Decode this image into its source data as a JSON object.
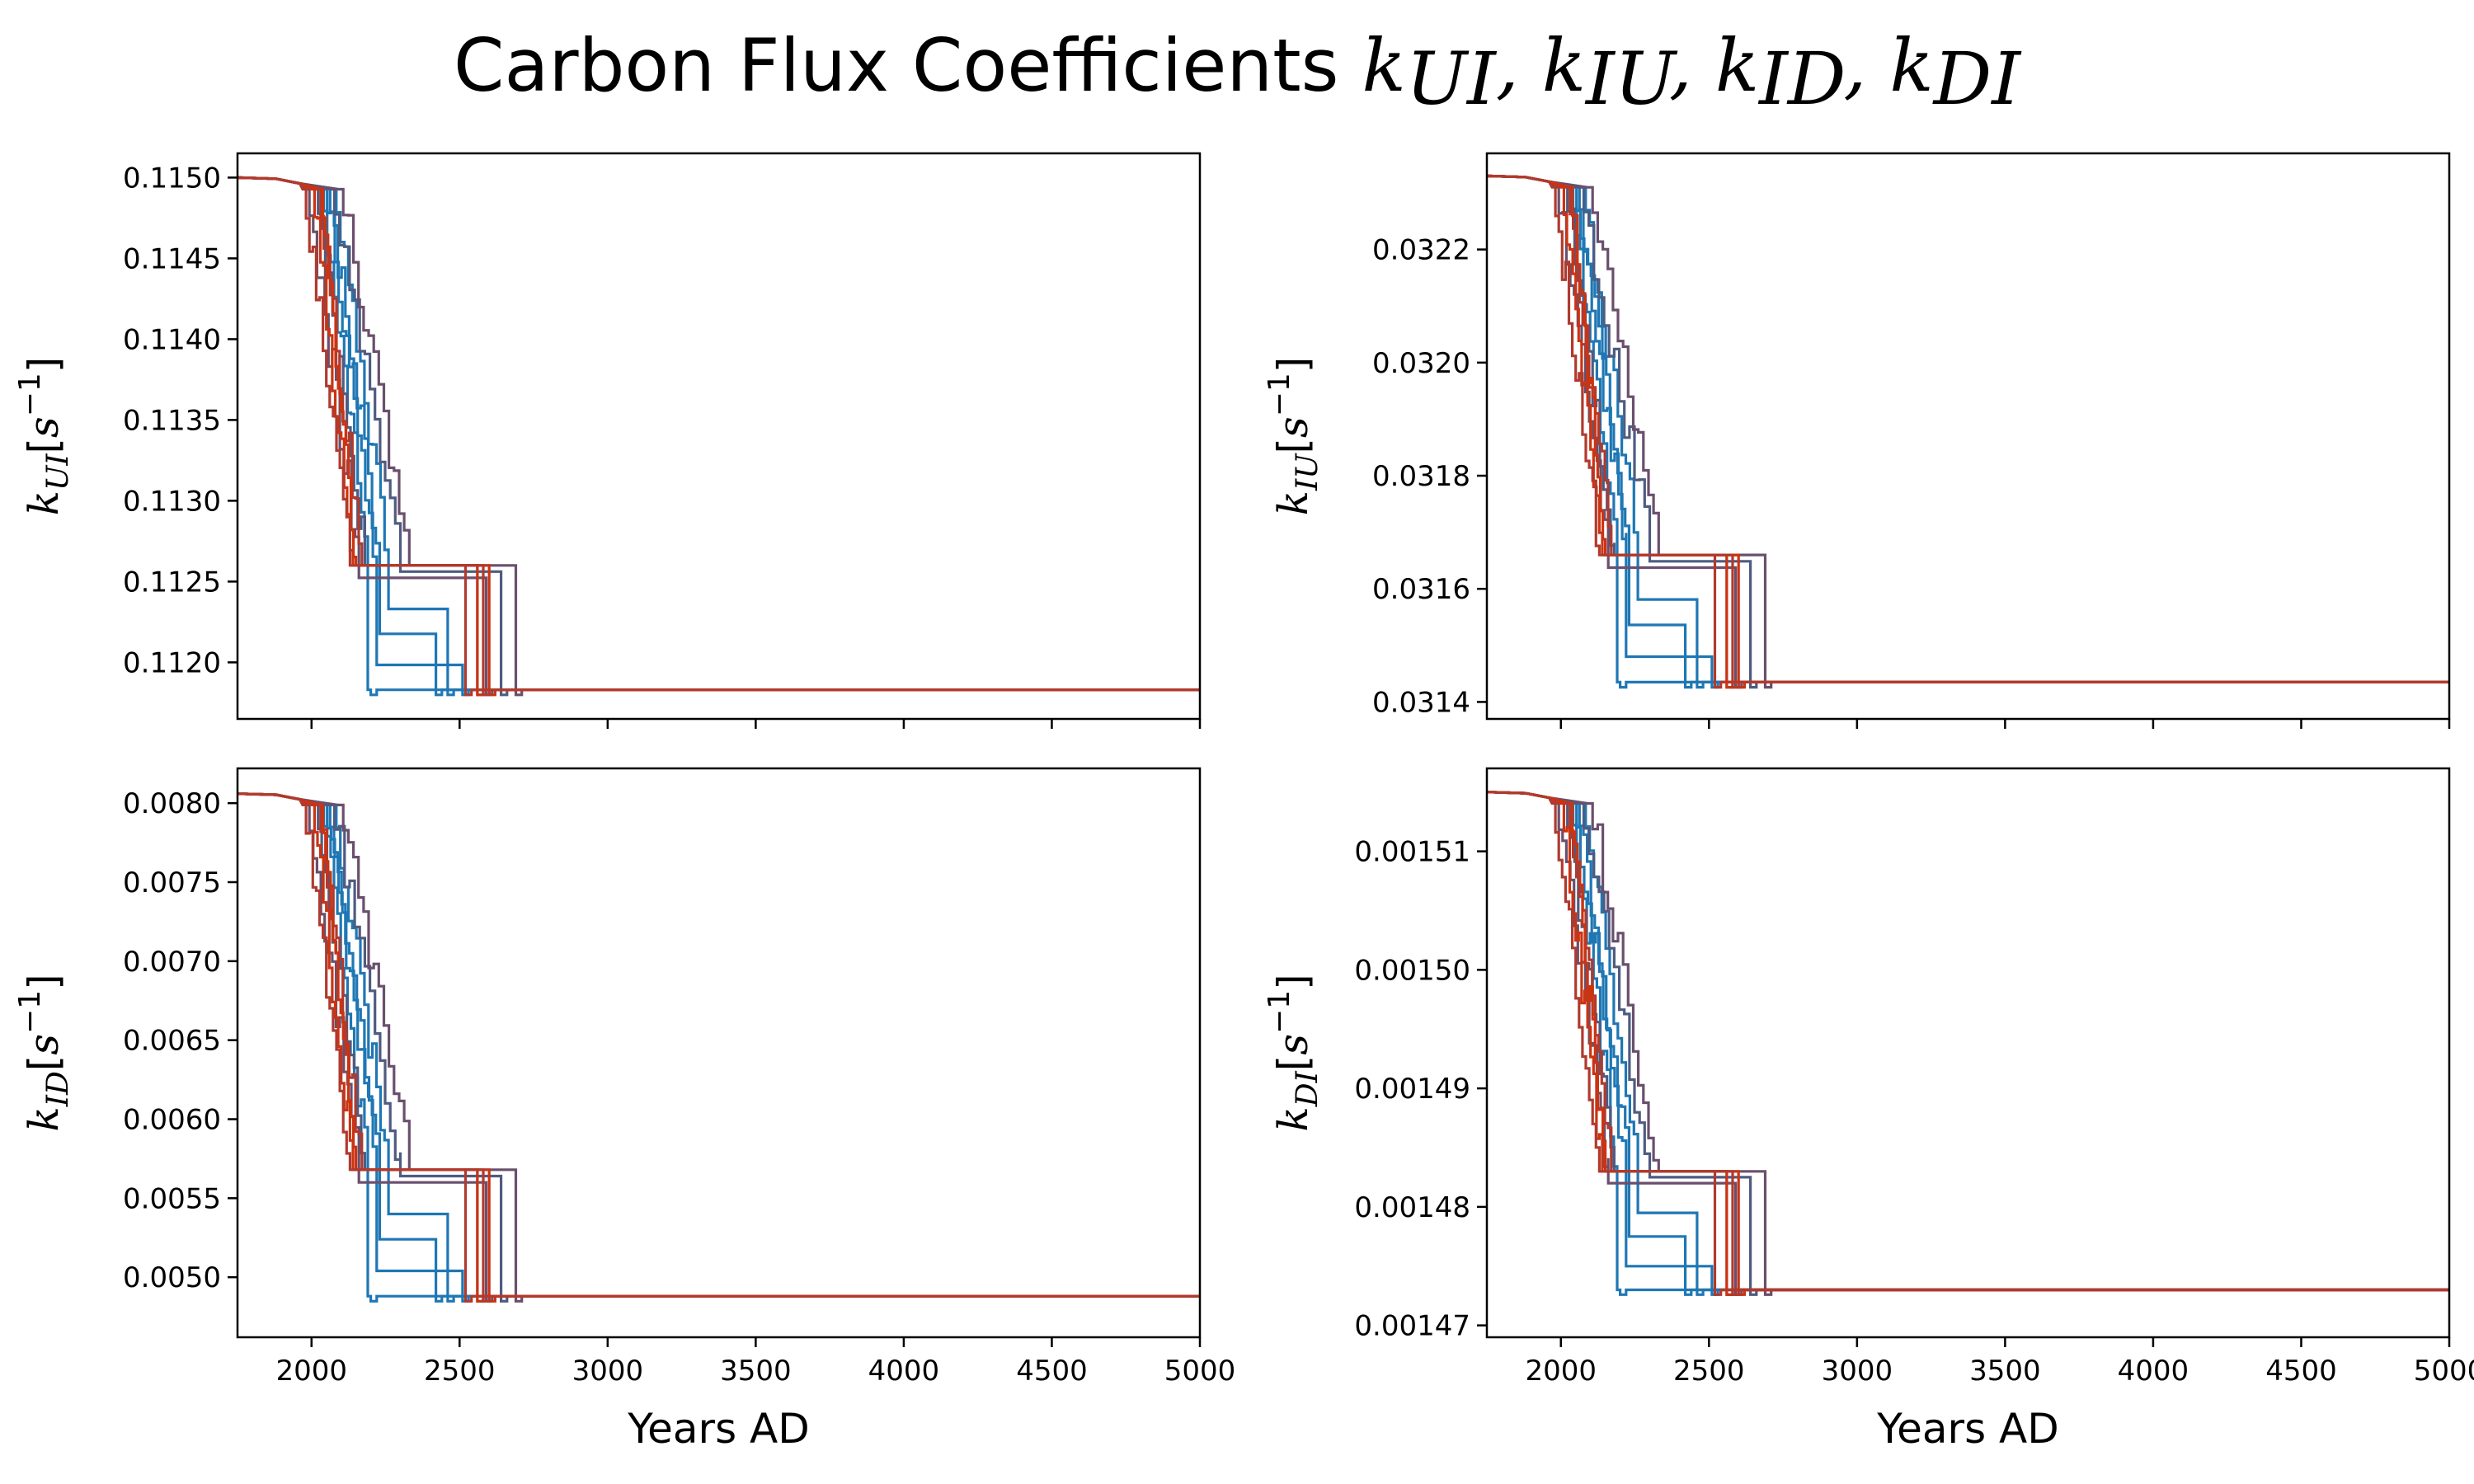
{
  "figure": {
    "title_text": "Carbon Flux Coefficients ",
    "title_math": "k_UI, k_IU, k_ID, k_DI"
  },
  "chart_data": [
    {
      "type": "line",
      "ylabel": "k_UI[s^-1]",
      "xlabel": "",
      "xlim": [
        1750,
        5000
      ],
      "ylim": [
        0.11165,
        0.11515
      ],
      "x_ticks": [
        2000,
        2500,
        3000,
        3500,
        4000,
        4500,
        5000
      ],
      "y_ticks": [
        "0.1120",
        "0.1125",
        "0.1130",
        "0.1135",
        "0.1140",
        "0.1145",
        "0.1150"
      ],
      "y_start": 0.115,
      "y_plateau": 0.1126,
      "y_end": 0.11183
    },
    {
      "type": "line",
      "ylabel": "k_IU[s^-1]",
      "xlabel": "",
      "xlim": [
        1750,
        5000
      ],
      "ylim": [
        0.03137,
        0.03237
      ],
      "x_ticks": [
        2000,
        2500,
        3000,
        3500,
        4000,
        4500,
        5000
      ],
      "y_ticks": [
        "0.0314",
        "0.0316",
        "0.0318",
        "0.0320",
        "0.0322"
      ],
      "y_start": 0.03233,
      "y_plateau": 0.03166,
      "y_end": 0.031435
    },
    {
      "type": "line",
      "ylabel": "k_ID[s^-1]",
      "xlabel": "Years AD",
      "xlim": [
        1750,
        5000
      ],
      "ylim": [
        0.00462,
        0.00822
      ],
      "x_ticks": [
        2000,
        2500,
        3000,
        3500,
        4000,
        4500,
        5000
      ],
      "y_ticks": [
        "0.0050",
        "0.0055",
        "0.0060",
        "0.0065",
        "0.0070",
        "0.0075",
        "0.0080"
      ],
      "y_start": 0.00806,
      "y_plateau": 0.00568,
      "y_end": 0.00488
    },
    {
      "type": "line",
      "ylabel": "k_DI[s^-1]",
      "xlabel": "Years AD",
      "xlim": [
        1750,
        5000
      ],
      "ylim": [
        0.001469,
        0.001517
      ],
      "x_ticks": [
        2000,
        2500,
        3000,
        3500,
        4000,
        4500,
        5000
      ],
      "y_ticks": [
        "0.00147",
        "0.00148",
        "0.00149",
        "0.00150",
        "0.00151"
      ],
      "y_start": 0.001515,
      "y_plateau": 0.001483,
      "y_end": 0.001473
    }
  ],
  "colors": {
    "blue": "#1f77b4",
    "slate": "#4f5b80",
    "purple": "#6a4f6d",
    "red": "#cc3311",
    "dark_red": "#b03a2e"
  }
}
